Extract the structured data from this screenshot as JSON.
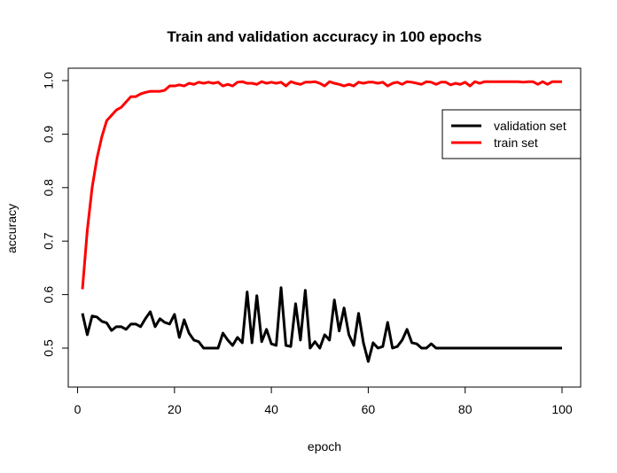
{
  "chart_data": {
    "type": "line",
    "title": "Train and validation accuracy in 100 epochs",
    "xlabel": "epoch",
    "ylabel": "accuracy",
    "xlim": [
      1,
      100
    ],
    "ylim": [
      0.5,
      1.0
    ],
    "xticks": [
      0,
      20,
      40,
      60,
      80,
      100
    ],
    "yticks": [
      0.5,
      0.6,
      0.7,
      0.8,
      0.9,
      1.0
    ],
    "xtick_labels": [
      "0",
      "20",
      "40",
      "60",
      "80",
      "100"
    ],
    "ytick_labels": [
      "0.5",
      "0.6",
      "0.7",
      "0.8",
      "0.9",
      "1.0"
    ],
    "grid": false,
    "legend_position": "top-right",
    "x": [
      1,
      2,
      3,
      4,
      5,
      6,
      7,
      8,
      9,
      10,
      11,
      12,
      13,
      14,
      15,
      16,
      17,
      18,
      19,
      20,
      21,
      22,
      23,
      24,
      25,
      26,
      27,
      28,
      29,
      30,
      31,
      32,
      33,
      34,
      35,
      36,
      37,
      38,
      39,
      40,
      41,
      42,
      43,
      44,
      45,
      46,
      47,
      48,
      49,
      50,
      51,
      52,
      53,
      54,
      55,
      56,
      57,
      58,
      59,
      60,
      61,
      62,
      63,
      64,
      65,
      66,
      67,
      68,
      69,
      70,
      71,
      72,
      73,
      74,
      75,
      76,
      77,
      78,
      79,
      80,
      81,
      82,
      83,
      84,
      85,
      86,
      87,
      88,
      89,
      90,
      91,
      92,
      93,
      94,
      95,
      96,
      97,
      98,
      99,
      100
    ],
    "series": [
      {
        "name": "validation set",
        "color": "#000000",
        "values": [
          0.565,
          0.525,
          0.56,
          0.558,
          0.55,
          0.547,
          0.533,
          0.54,
          0.54,
          0.535,
          0.545,
          0.545,
          0.54,
          0.555,
          0.568,
          0.54,
          0.555,
          0.548,
          0.545,
          0.563,
          0.52,
          0.553,
          0.528,
          0.515,
          0.512,
          0.5,
          0.5,
          0.5,
          0.5,
          0.528,
          0.515,
          0.505,
          0.52,
          0.51,
          0.605,
          0.51,
          0.598,
          0.512,
          0.535,
          0.508,
          0.505,
          0.613,
          0.505,
          0.503,
          0.583,
          0.515,
          0.608,
          0.5,
          0.512,
          0.5,
          0.525,
          0.515,
          0.59,
          0.532,
          0.575,
          0.525,
          0.505,
          0.565,
          0.51,
          0.475,
          0.51,
          0.5,
          0.503,
          0.548,
          0.5,
          0.503,
          0.515,
          0.535,
          0.51,
          0.508,
          0.5,
          0.5,
          0.508,
          0.5,
          0.5,
          0.5,
          0.5,
          0.5,
          0.5,
          0.5,
          0.5,
          0.5,
          0.5,
          0.5,
          0.5,
          0.5,
          0.5,
          0.5,
          0.5,
          0.5,
          0.5,
          0.5,
          0.5,
          0.5,
          0.5,
          0.5,
          0.5,
          0.5,
          0.5,
          0.5
        ]
      },
      {
        "name": "train set",
        "color": "#ff0000",
        "values": [
          0.61,
          0.72,
          0.8,
          0.855,
          0.895,
          0.925,
          0.935,
          0.945,
          0.95,
          0.96,
          0.97,
          0.97,
          0.975,
          0.978,
          0.98,
          0.98,
          0.98,
          0.982,
          0.99,
          0.99,
          0.992,
          0.99,
          0.995,
          0.993,
          0.997,
          0.995,
          0.997,
          0.995,
          0.997,
          0.99,
          0.993,
          0.99,
          0.997,
          0.998,
          0.995,
          0.995,
          0.993,
          0.998,
          0.995,
          0.997,
          0.995,
          0.997,
          0.99,
          0.998,
          0.995,
          0.993,
          0.997,
          0.997,
          0.998,
          0.995,
          0.99,
          0.998,
          0.995,
          0.993,
          0.99,
          0.993,
          0.99,
          0.997,
          0.995,
          0.997,
          0.997,
          0.995,
          0.997,
          0.99,
          0.995,
          0.997,
          0.993,
          0.998,
          0.997,
          0.995,
          0.993,
          0.998,
          0.997,
          0.993,
          0.997,
          0.997,
          0.992,
          0.995,
          0.993,
          0.997,
          0.99,
          0.998,
          0.995,
          0.998,
          0.998,
          0.998,
          0.998,
          0.998,
          0.998,
          0.998,
          0.998,
          0.997,
          0.998,
          0.998,
          0.993,
          0.998,
          0.993,
          0.998,
          0.998,
          0.998
        ]
      }
    ]
  }
}
